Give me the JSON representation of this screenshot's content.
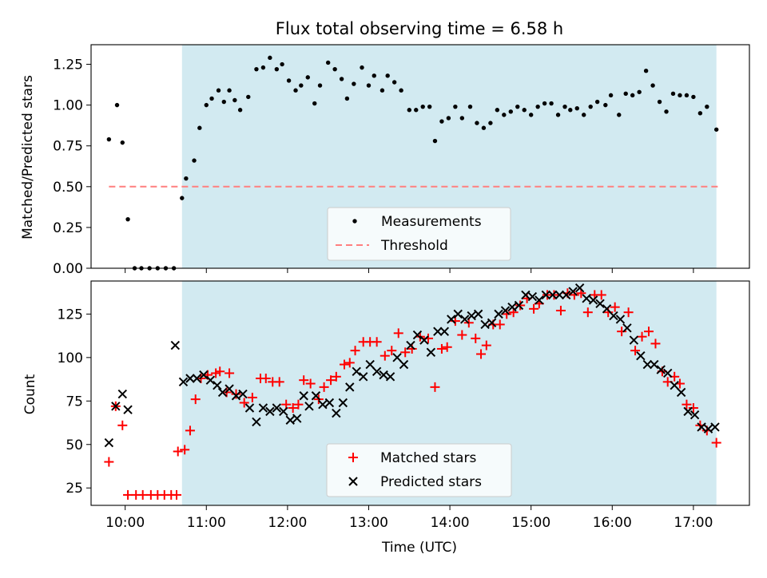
{
  "title": "Flux total observing time = 6.58 h",
  "colors": {
    "shade": "#add8e6",
    "threshold": "#ff7f7f",
    "matched": "#ff0000",
    "predicted": "#000000",
    "measurement": "#000000"
  },
  "chart_data": [
    {
      "type": "scatter",
      "ylabel": "Matched/Predicted stars",
      "ylim": [
        0,
        1.37
      ],
      "yticks": [
        0.0,
        0.25,
        0.5,
        0.75,
        1.0,
        1.25
      ],
      "ytick_labels": [
        "0.00",
        "0.25",
        "0.50",
        "0.75",
        "1.00",
        "1.25"
      ],
      "xlim": [
        9.58,
        17.69
      ],
      "shaded_span": [
        "10:42",
        "17:17"
      ],
      "threshold": 0.5,
      "threshold_span": [
        "09:48",
        "17:18"
      ],
      "legend": {
        "position": "lower center",
        "entries": [
          "Measurements",
          "Threshold"
        ]
      },
      "measurements": [
        [
          "09:48",
          0.79
        ],
        [
          "09:54",
          1.0
        ],
        [
          "09:58",
          0.77
        ],
        [
          "10:02",
          0.3
        ],
        [
          "10:07",
          0
        ],
        [
          "10:12",
          0
        ],
        [
          "10:18",
          0
        ],
        [
          "10:24",
          0
        ],
        [
          "10:30",
          0
        ],
        [
          "10:36",
          0
        ],
        [
          "10:42",
          0.43
        ],
        [
          "10:45",
          0.55
        ],
        [
          "10:51",
          0.66
        ],
        [
          "10:55",
          0.86
        ],
        [
          "11:00",
          1.0
        ],
        [
          "11:04",
          1.04
        ],
        [
          "11:09",
          1.09
        ],
        [
          "11:13",
          1.02
        ],
        [
          "11:17",
          1.09
        ],
        [
          "11:21",
          1.03
        ],
        [
          "11:25",
          0.97
        ],
        [
          "11:31",
          1.05
        ],
        [
          "11:37",
          1.22
        ],
        [
          "11:42",
          1.23
        ],
        [
          "11:47",
          1.29
        ],
        [
          "11:52",
          1.22
        ],
        [
          "11:56",
          1.25
        ],
        [
          "12:01",
          1.15
        ],
        [
          "12:06",
          1.09
        ],
        [
          "12:10",
          1.12
        ],
        [
          "12:15",
          1.17
        ],
        [
          "12:20",
          1.01
        ],
        [
          "12:24",
          1.12
        ],
        [
          "12:30",
          1.26
        ],
        [
          "12:35",
          1.22
        ],
        [
          "12:40",
          1.16
        ],
        [
          "12:44",
          1.04
        ],
        [
          "12:49",
          1.13
        ],
        [
          "12:55",
          1.23
        ],
        [
          "13:00",
          1.12
        ],
        [
          "13:04",
          1.18
        ],
        [
          "13:10",
          1.09
        ],
        [
          "13:14",
          1.18
        ],
        [
          "13:19",
          1.14
        ],
        [
          "13:24",
          1.09
        ],
        [
          "13:30",
          0.97
        ],
        [
          "13:35",
          0.97
        ],
        [
          "13:40",
          0.99
        ],
        [
          "13:45",
          0.99
        ],
        [
          "13:49",
          0.78
        ],
        [
          "13:54",
          0.9
        ],
        [
          "13:59",
          0.92
        ],
        [
          "14:04",
          0.99
        ],
        [
          "14:09",
          0.92
        ],
        [
          "14:15",
          0.99
        ],
        [
          "14:20",
          0.89
        ],
        [
          "14:25",
          0.86
        ],
        [
          "14:30",
          0.89
        ],
        [
          "14:35",
          0.97
        ],
        [
          "14:40",
          0.94
        ],
        [
          "14:45",
          0.96
        ],
        [
          "14:50",
          0.99
        ],
        [
          "14:55",
          0.97
        ],
        [
          "15:00",
          0.94
        ],
        [
          "15:05",
          0.99
        ],
        [
          "15:10",
          1.01
        ],
        [
          "15:15",
          1.01
        ],
        [
          "15:20",
          0.94
        ],
        [
          "15:25",
          0.99
        ],
        [
          "15:29",
          0.97
        ],
        [
          "15:34",
          0.98
        ],
        [
          "15:39",
          0.94
        ],
        [
          "15:44",
          0.99
        ],
        [
          "15:49",
          1.02
        ],
        [
          "15:55",
          1.0
        ],
        [
          "15:59",
          1.06
        ],
        [
          "16:05",
          0.94
        ],
        [
          "16:10",
          1.07
        ],
        [
          "16:15",
          1.06
        ],
        [
          "16:20",
          1.08
        ],
        [
          "16:25",
          1.21
        ],
        [
          "16:30",
          1.12
        ],
        [
          "16:35",
          1.02
        ],
        [
          "16:40",
          0.96
        ],
        [
          "16:45",
          1.07
        ],
        [
          "16:50",
          1.06
        ],
        [
          "16:55",
          1.06
        ],
        [
          "17:00",
          1.05
        ],
        [
          "17:05",
          0.95
        ],
        [
          "17:10",
          0.99
        ],
        [
          "17:17",
          0.85
        ]
      ]
    },
    {
      "type": "scatter",
      "xlabel": "Time (UTC)",
      "ylabel": "Count",
      "ylim": [
        15,
        144
      ],
      "yticks": [
        25,
        50,
        75,
        100,
        125
      ],
      "ytick_labels": [
        "25",
        "50",
        "75",
        "100",
        "125"
      ],
      "xlim": [
        9.58,
        17.69
      ],
      "xticks": [
        "10:00",
        "11:00",
        "12:00",
        "13:00",
        "14:00",
        "15:00",
        "16:00",
        "17:00"
      ],
      "shaded_span": [
        "10:42",
        "17:17"
      ],
      "legend": {
        "position": "lower center",
        "entries": [
          "Matched stars",
          "Predicted stars"
        ]
      },
      "series": [
        {
          "name": "Matched stars",
          "marker": "+",
          "points": [
            [
              "09:48",
              40
            ],
            [
              "09:53",
              72
            ],
            [
              "09:58",
              61
            ],
            [
              "10:02",
              21
            ],
            [
              "10:08",
              21
            ],
            [
              "10:13",
              21
            ],
            [
              "10:19",
              21
            ],
            [
              "10:24",
              21
            ],
            [
              "10:29",
              21
            ],
            [
              "10:34",
              21
            ],
            [
              "10:38",
              21
            ],
            [
              "10:39",
              46
            ],
            [
              "10:44",
              47
            ],
            [
              "10:48",
              58
            ],
            [
              "10:52",
              76
            ],
            [
              "10:56",
              88
            ],
            [
              "11:01",
              90
            ],
            [
              "11:07",
              91
            ],
            [
              "11:10",
              92
            ],
            [
              "11:15",
              80
            ],
            [
              "11:17",
              91
            ],
            [
              "11:22",
              79
            ],
            [
              "11:28",
              74
            ],
            [
              "11:34",
              77
            ],
            [
              "11:40",
              88
            ],
            [
              "11:44",
              88
            ],
            [
              "11:49",
              86
            ],
            [
              "11:54",
              86
            ],
            [
              "11:59",
              73
            ],
            [
              "12:04",
              71
            ],
            [
              "12:08",
              73
            ],
            [
              "12:12",
              87
            ],
            [
              "12:17",
              85
            ],
            [
              "12:23",
              76
            ],
            [
              "12:27",
              83
            ],
            [
              "12:32",
              87
            ],
            [
              "12:36",
              89
            ],
            [
              "12:42",
              96
            ],
            [
              "12:46",
              97
            ],
            [
              "12:50",
              104
            ],
            [
              "12:56",
              109
            ],
            [
              "13:01",
              109
            ],
            [
              "13:06",
              109
            ],
            [
              "13:12",
              101
            ],
            [
              "13:17",
              104
            ],
            [
              "13:22",
              114
            ],
            [
              "13:27",
              103
            ],
            [
              "13:32",
              105
            ],
            [
              "13:38",
              112
            ],
            [
              "13:44",
              111
            ],
            [
              "13:49",
              83
            ],
            [
              "13:54",
              105
            ],
            [
              "13:58",
              106
            ],
            [
              "14:04",
              121
            ],
            [
              "14:09",
              113
            ],
            [
              "14:14",
              120
            ],
            [
              "14:19",
              111
            ],
            [
              "14:23",
              102
            ],
            [
              "14:27",
              107
            ],
            [
              "14:32",
              119
            ],
            [
              "14:37",
              119
            ],
            [
              "14:42",
              125
            ],
            [
              "14:47",
              126
            ],
            [
              "14:52",
              130
            ],
            [
              "14:57",
              134
            ],
            [
              "15:02",
              128
            ],
            [
              "15:06",
              131
            ],
            [
              "15:12",
              136
            ],
            [
              "15:17",
              136
            ],
            [
              "15:22",
              127
            ],
            [
              "15:27",
              137
            ],
            [
              "15:32",
              136
            ],
            [
              "15:37",
              137
            ],
            [
              "15:42",
              126
            ],
            [
              "15:47",
              136
            ],
            [
              "15:52",
              136
            ],
            [
              "15:57",
              126
            ],
            [
              "16:02",
              129
            ],
            [
              "16:07",
              115
            ],
            [
              "16:12",
              126
            ],
            [
              "16:17",
              104
            ],
            [
              "16:22",
              112
            ],
            [
              "16:27",
              115
            ],
            [
              "16:32",
              108
            ],
            [
              "16:37",
              92
            ],
            [
              "16:41",
              86
            ],
            [
              "16:46",
              89
            ],
            [
              "16:50",
              85
            ],
            [
              "16:55",
              73
            ],
            [
              "17:00",
              71
            ],
            [
              "17:05",
              61
            ],
            [
              "17:10",
              58
            ],
            [
              "17:17",
              51
            ]
          ]
        },
        {
          "name": "Predicted stars",
          "marker": "x",
          "points": [
            [
              "09:48",
              51
            ],
            [
              "09:53",
              72
            ],
            [
              "09:58",
              79
            ],
            [
              "10:02",
              70
            ],
            [
              "10:37",
              107
            ],
            [
              "10:43",
              86
            ],
            [
              "10:48",
              88
            ],
            [
              "10:53",
              88
            ],
            [
              "10:58",
              90
            ],
            [
              "11:03",
              87
            ],
            [
              "11:08",
              84
            ],
            [
              "11:12",
              80
            ],
            [
              "11:17",
              82
            ],
            [
              "11:22",
              78
            ],
            [
              "11:27",
              79
            ],
            [
              "11:32",
              71
            ],
            [
              "11:37",
              63
            ],
            [
              "11:42",
              71
            ],
            [
              "11:47",
              69
            ],
            [
              "11:52",
              71
            ],
            [
              "11:57",
              69
            ],
            [
              "12:02",
              64
            ],
            [
              "12:07",
              65
            ],
            [
              "12:12",
              78
            ],
            [
              "12:16",
              72
            ],
            [
              "12:21",
              78
            ],
            [
              "12:26",
              73
            ],
            [
              "12:31",
              74
            ],
            [
              "12:36",
              68
            ],
            [
              "12:41",
              74
            ],
            [
              "12:46",
              83
            ],
            [
              "12:51",
              92
            ],
            [
              "12:56",
              89
            ],
            [
              "13:01",
              96
            ],
            [
              "13:06",
              92
            ],
            [
              "13:11",
              90
            ],
            [
              "13:16",
              89
            ],
            [
              "13:21",
              100
            ],
            [
              "13:26",
              96
            ],
            [
              "13:31",
              107
            ],
            [
              "13:36",
              113
            ],
            [
              "13:41",
              110
            ],
            [
              "13:46",
              103
            ],
            [
              "13:51",
              115
            ],
            [
              "13:56",
              115
            ],
            [
              "14:01",
              122
            ],
            [
              "14:06",
              125
            ],
            [
              "14:11",
              122
            ],
            [
              "14:16",
              124
            ],
            [
              "14:21",
              125
            ],
            [
              "14:26",
              119
            ],
            [
              "14:31",
              120
            ],
            [
              "14:36",
              125
            ],
            [
              "14:41",
              127
            ],
            [
              "14:46",
              129
            ],
            [
              "14:51",
              130
            ],
            [
              "14:56",
              136
            ],
            [
              "15:01",
              135
            ],
            [
              "15:06",
              133
            ],
            [
              "15:11",
              136
            ],
            [
              "15:16",
              136
            ],
            [
              "15:21",
              136
            ],
            [
              "15:26",
              136
            ],
            [
              "15:31",
              138
            ],
            [
              "15:36",
              140
            ],
            [
              "15:41",
              134
            ],
            [
              "15:46",
              133
            ],
            [
              "15:51",
              131
            ],
            [
              "15:56",
              128
            ],
            [
              "16:01",
              124
            ],
            [
              "16:06",
              122
            ],
            [
              "16:11",
              117
            ],
            [
              "16:16",
              110
            ],
            [
              "16:21",
              101
            ],
            [
              "16:26",
              96
            ],
            [
              "16:31",
              96
            ],
            [
              "16:36",
              93
            ],
            [
              "16:41",
              91
            ],
            [
              "16:46",
              84
            ],
            [
              "16:51",
              80
            ],
            [
              "16:56",
              69
            ],
            [
              "17:01",
              67
            ],
            [
              "17:06",
              60
            ],
            [
              "17:11",
              59
            ],
            [
              "17:16",
              60
            ]
          ]
        }
      ]
    }
  ]
}
